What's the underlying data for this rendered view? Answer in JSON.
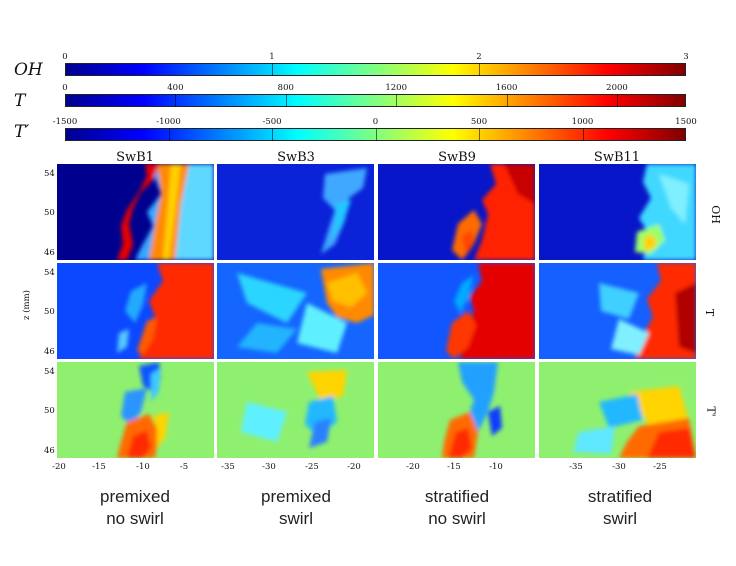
{
  "colorbars": [
    {
      "label": "OH",
      "ticks": [
        "0",
        "1",
        "2",
        "3"
      ]
    },
    {
      "label": "T",
      "ticks": [
        "0",
        "400",
        "800",
        "1200",
        "1600",
        "2000"
      ]
    },
    {
      "label": "T′",
      "ticks": [
        "-1500",
        "-1000",
        "-500",
        "0",
        "500",
        "1000",
        "1500"
      ]
    }
  ],
  "columns": [
    {
      "title": "SwB1",
      "x_ticks": [
        "-20",
        "-15",
        "-10",
        "-5"
      ],
      "case_line1": "premixed",
      "case_line2": "no swirl"
    },
    {
      "title": "SwB3",
      "x_ticks": [
        "-35",
        "-30",
        "-25",
        "-20"
      ],
      "case_line1": "premixed",
      "case_line2": "swirl"
    },
    {
      "title": "SwB9",
      "x_ticks": [
        "-20",
        "-15",
        "-10"
      ],
      "case_line1": "stratified",
      "case_line2": "no swirl"
    },
    {
      "title": "SwB11",
      "x_ticks": [
        "-35",
        "-30",
        "-25"
      ],
      "case_line1": "stratified",
      "case_line2": "swirl"
    }
  ],
  "rows": [
    {
      "label": "OH"
    },
    {
      "label": "T"
    },
    {
      "label": "T'"
    }
  ],
  "y_ticks": [
    "54",
    "50",
    "46"
  ],
  "y_axis_label": "z (mm)",
  "colors": {
    "jet": [
      "#00008f",
      "#0000ff",
      "#0080ff",
      "#00ffff",
      "#80ff80",
      "#ffff00",
      "#ff8000",
      "#ff0000",
      "#800000"
    ]
  }
}
